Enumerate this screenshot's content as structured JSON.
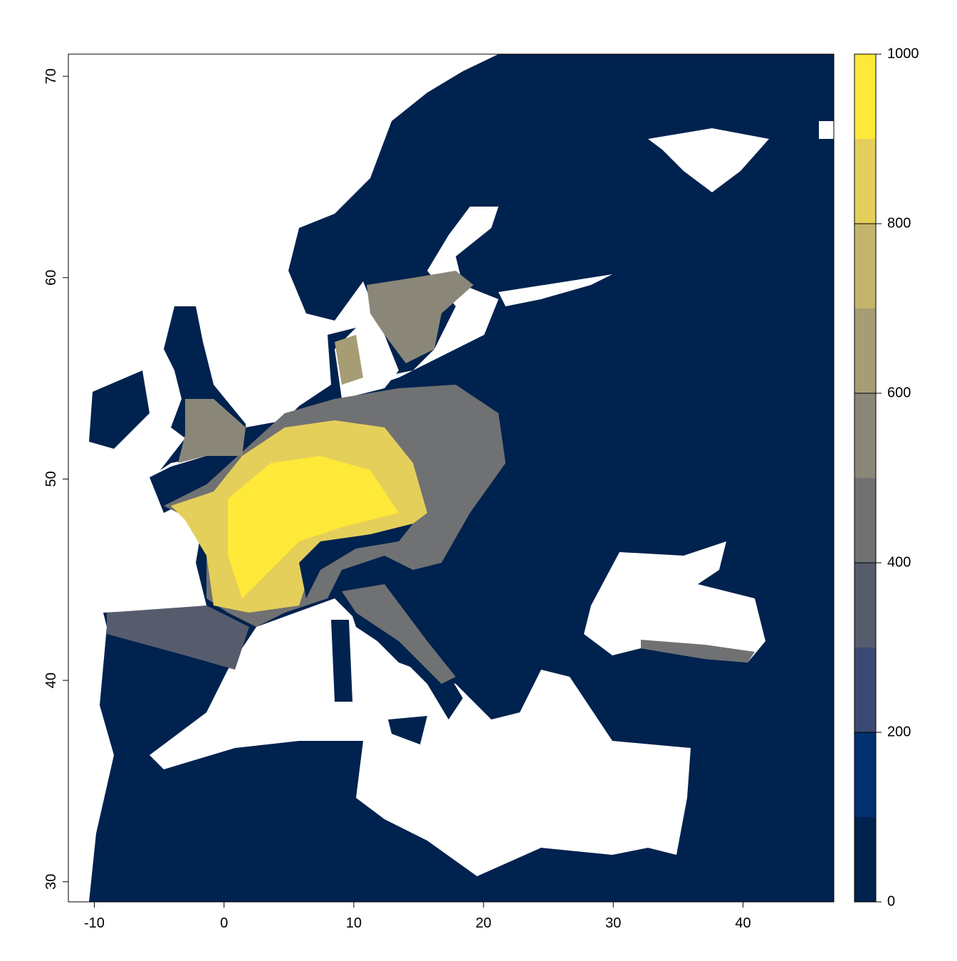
{
  "chart_data": {
    "type": "raster",
    "xlim": [
      -12,
      47
    ],
    "ylim": [
      29,
      71.1
    ],
    "xticks": [
      -10,
      0,
      10,
      20,
      30,
      40
    ],
    "yticks": [
      30,
      40,
      50,
      60,
      70
    ],
    "colorbar": {
      "breaks": [
        0,
        100,
        200,
        300,
        400,
        500,
        600,
        700,
        800,
        900,
        1000
      ],
      "colors": [
        "#00224e",
        "#00306f",
        "#3b4a72",
        "#575c6d",
        "#707173",
        "#8a8779",
        "#a69d75",
        "#c4b56c",
        "#e4cf5b",
        "#fee838"
      ],
      "ticks": [
        0,
        200,
        400,
        600,
        800,
        1000
      ]
    }
  }
}
